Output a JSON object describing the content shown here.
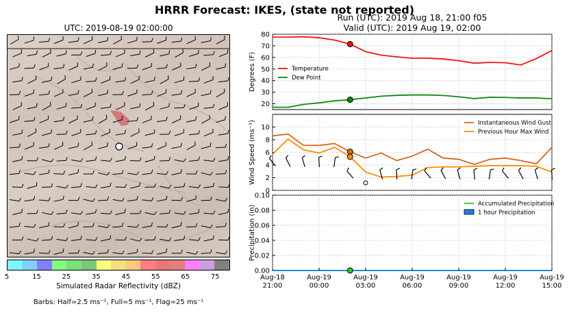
{
  "suptitle": "HRRR Forecast: IKES, (state not reported)",
  "map": {
    "title": "UTC: 2019-08-19 02:00:00",
    "colorbar_label": "Simulated Radar Reflectivity (dBZ)",
    "colorbar_ticks": [
      "5",
      "15",
      "25",
      "35",
      "45",
      "55",
      "65",
      "75"
    ],
    "colorbar_colors": [
      "#7ff5ff",
      "#7fd0ff",
      "#8080ff",
      "#7fff7f",
      "#7be07b",
      "#7bc87b",
      "#ffff7f",
      "#f5dd80",
      "#ffc87f",
      "#ff7f7f",
      "#e87878",
      "#e08080",
      "#ff80ff",
      "#c8a0e0",
      "#808080"
    ],
    "barb_note": "Barbs: Half=2.5 ms⁻¹, Full=5 ms⁻¹, Flag=25 ms⁻¹"
  },
  "run": {
    "line1": "Run (UTC): 2019 Aug 18, 21:00 f05",
    "line2": "Valid (UTC): 2019 Aug 19, 02:00"
  },
  "chart_data": [
    {
      "type": "line",
      "ylabel": "Degrees (F)",
      "ylim": [
        15,
        80
      ],
      "yticks": [
        20,
        30,
        40,
        50,
        60,
        70,
        80
      ],
      "xlim": [
        0,
        18
      ],
      "x": [
        0,
        1,
        2,
        3,
        4,
        5,
        6,
        7,
        8,
        9,
        10,
        11,
        12,
        13,
        14,
        15,
        16,
        17,
        18
      ],
      "series": [
        {
          "name": "Temperature",
          "color": "#ee1111",
          "values": [
            77.5,
            77.5,
            77.8,
            77,
            75,
            71.5,
            65,
            62,
            60.5,
            59.3,
            59.3,
            58.7,
            57.2,
            55,
            55.7,
            55.4,
            53.5,
            59,
            66
          ]
        },
        {
          "name": "Dew Point",
          "color": "#118811",
          "values": [
            17,
            17,
            19.5,
            20.8,
            22.5,
            23.5,
            25,
            26.5,
            27.3,
            27.6,
            27.6,
            27.2,
            26,
            24.5,
            25.6,
            25.5,
            25,
            25,
            24.3
          ]
        }
      ],
      "markers": [
        {
          "series": "Temperature",
          "x": 5,
          "y": 71.5
        },
        {
          "series": "Dew Point",
          "x": 5,
          "y": 23.5
        }
      ],
      "legend": "upper-left"
    },
    {
      "type": "line",
      "ylabel": "Wind Speed (ms⁻¹)",
      "ylim": [
        0,
        12
      ],
      "yticks": [
        0,
        2,
        4,
        6,
        8,
        10
      ],
      "xlim": [
        0,
        18
      ],
      "x": [
        0,
        1,
        2,
        3,
        4,
        5,
        6,
        7,
        8,
        9,
        10,
        11,
        12,
        13,
        14,
        15,
        16,
        17,
        18
      ],
      "series": [
        {
          "name": "Instantaneous Wind Gust",
          "color": "#d2691e",
          "values": [
            8.6,
            8.9,
            7.1,
            7.1,
            7.4,
            6.1,
            5.1,
            5.9,
            4.7,
            5.4,
            6.5,
            5.1,
            4.9,
            4.1,
            4.9,
            5.1,
            4.7,
            4.2,
            6.8
          ]
        },
        {
          "name": "Previous Hour Max Wind",
          "color": "#ff8c00",
          "values": [
            5.7,
            8.1,
            6.4,
            5.9,
            6.8,
            5.3,
            2.9,
            2.1,
            2.2,
            2.4,
            3.6,
            3.7,
            3.7,
            3.8,
            3.9,
            3.9,
            3.9,
            3.8,
            2.9
          ]
        }
      ],
      "markers": [
        {
          "series": "Instantaneous Wind Gust",
          "x": 5,
          "y": 6.1
        },
        {
          "series": "Previous Hour Max Wind",
          "x": 5,
          "y": 5.3
        }
      ],
      "legend": "upper-right"
    },
    {
      "type": "line",
      "ylabel": "Precipitation (in)",
      "ylim": [
        0,
        0.1
      ],
      "yticks": [
        "0.00",
        "0.02",
        "0.04",
        "0.06",
        "0.08",
        "0.10"
      ],
      "xlim": [
        0,
        18
      ],
      "x": [
        0,
        1,
        2,
        3,
        4,
        5,
        6,
        7,
        8,
        9,
        10,
        11,
        12,
        13,
        14,
        15,
        16,
        17,
        18
      ],
      "series": [
        {
          "name": "Accumulated Precipitation",
          "color": "#22cc22",
          "values": [
            0,
            0,
            0,
            0,
            0,
            0,
            0,
            0,
            0,
            0,
            0,
            0,
            0,
            0,
            0,
            0,
            0,
            0,
            0
          ]
        },
        {
          "name": "1 hour Precipitation",
          "color": "#1e7fe0",
          "values": [
            0,
            0,
            0,
            0,
            0,
            0,
            0,
            0,
            0,
            0,
            0,
            0,
            0,
            0,
            0,
            0,
            0,
            0,
            0
          ]
        }
      ],
      "markers": [
        {
          "series": "Accumulated Precipitation",
          "x": 5,
          "y": 0
        }
      ],
      "legend": "upper-right",
      "xticks": [
        {
          "x": 0,
          "l1": "Aug-18",
          "l2": "21:00"
        },
        {
          "x": 3,
          "l1": "Aug-19",
          "l2": "00:00"
        },
        {
          "x": 6,
          "l1": "Aug-19",
          "l2": "03:00"
        },
        {
          "x": 9,
          "l1": "Aug-19",
          "l2": "06:00"
        },
        {
          "x": 12,
          "l1": "Aug-19",
          "l2": "09:00"
        },
        {
          "x": 15,
          "l1": "Aug-19",
          "l2": "12:00"
        },
        {
          "x": 18,
          "l1": "Aug-19",
          "l2": "15:00"
        }
      ]
    }
  ]
}
